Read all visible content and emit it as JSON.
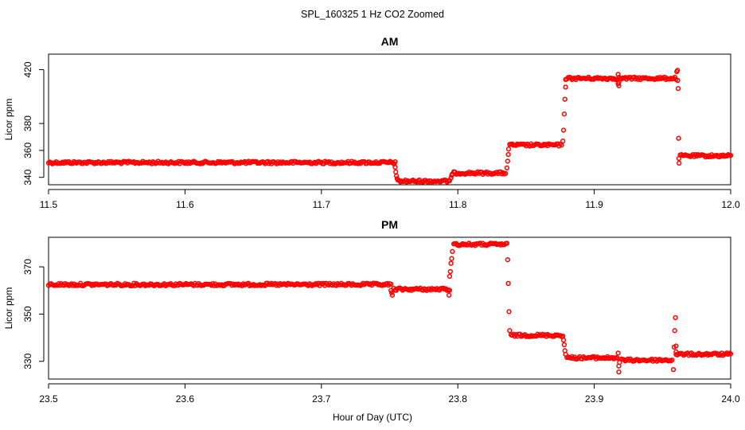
{
  "figure": {
    "title": "SPL_160325  1 Hz CO2 Zoomed",
    "xlabel": "Hour of Day (UTC)"
  },
  "chart_data": [
    {
      "type": "scatter",
      "title": "AM",
      "xlabel": "",
      "ylabel": "Licor ppm",
      "xlim": [
        11.5,
        12.0
      ],
      "ylim": [
        334.5,
        431.5
      ],
      "xticks": [
        11.5,
        11.6,
        11.7,
        11.8,
        11.9,
        12.0
      ],
      "xtick_labels": [
        "11.5",
        "11.6",
        "11.7",
        "11.8",
        "11.9",
        "12.0"
      ],
      "yticks": [
        340,
        360,
        380,
        420
      ],
      "ytick_labels": [
        "340",
        "360",
        "380",
        "420"
      ],
      "grid": false,
      "marker": "open-circle",
      "color": "#ff0000",
      "segments": [
        {
          "x_start": 11.5,
          "x_end": 11.754,
          "y": 351.0
        },
        {
          "x_start": 11.756,
          "x_end": 11.794,
          "y": 337.2
        },
        {
          "x_start": 11.797,
          "x_end": 11.835,
          "y": 343.2
        },
        {
          "x_start": 11.838,
          "x_end": 11.876,
          "y": 364.0
        },
        {
          "x_start": 11.879,
          "x_end": 11.96,
          "y": 413.5
        },
        {
          "x_start": 11.963,
          "x_end": 12.0,
          "y": 356.0
        }
      ],
      "transitions": [
        {
          "x": [
            11.7535,
            11.754,
            11.7545,
            11.755,
            11.7555
          ],
          "y": [
            350.0,
            347.5,
            344.0,
            341.0,
            339.0
          ]
        },
        {
          "x": [
            11.795,
            11.7955,
            11.796
          ],
          "y": [
            339.5,
            341.5,
            342.5
          ]
        },
        {
          "x": [
            11.836,
            11.8365,
            11.837,
            11.8372
          ],
          "y": [
            347.0,
            352.0,
            357.0,
            361.0
          ]
        },
        {
          "x": [
            11.877,
            11.8775,
            11.878,
            11.8785,
            11.879
          ],
          "y": [
            367.0,
            375.0,
            387.0,
            398.0,
            407.0
          ]
        },
        {
          "x": [
            11.9175,
            11.9175,
            11.918,
            11.918
          ],
          "y": [
            416.5,
            409.5,
            408.0,
            410.5
          ]
        },
        {
          "x": [
            11.9605,
            11.961,
            11.9612,
            11.9615,
            11.9618,
            11.962,
            11.9622
          ],
          "y": [
            418.5,
            419.5,
            412.0,
            406.0,
            369.0,
            354.0,
            350.5
          ]
        }
      ]
    },
    {
      "type": "scatter",
      "title": "PM",
      "xlabel": "",
      "ylabel": "Licor ppm",
      "xlim": [
        23.5,
        24.0
      ],
      "ylim": [
        322.5,
        382.5
      ],
      "xticks": [
        23.5,
        23.6,
        23.7,
        23.8,
        23.9,
        24.0
      ],
      "xtick_labels": [
        "23.5",
        "23.6",
        "23.7",
        "23.8",
        "23.9",
        "24.0"
      ],
      "yticks": [
        330,
        350,
        370
      ],
      "ytick_labels": [
        "330",
        "350",
        "370"
      ],
      "grid": false,
      "marker": "open-circle",
      "color": "#ff0000",
      "segments": [
        {
          "x_start": 23.5,
          "x_end": 23.751,
          "y": 362.5
        },
        {
          "x_start": 23.753,
          "x_end": 23.794,
          "y": 360.5
        },
        {
          "x_start": 23.797,
          "x_end": 23.836,
          "y": 379.5
        },
        {
          "x_start": 23.839,
          "x_end": 23.877,
          "y": 341.0
        },
        {
          "x_start": 23.88,
          "x_end": 23.917,
          "y": 331.5
        },
        {
          "x_start": 23.92,
          "x_end": 23.957,
          "y": 330.5
        },
        {
          "x_start": 23.96,
          "x_end": 24.0,
          "y": 333.0
        }
      ],
      "transitions": [
        {
          "x": [
            23.751,
            23.7515,
            23.752
          ],
          "y": [
            360.0,
            359.0,
            358.0
          ]
        },
        {
          "x": [
            23.7935,
            23.794,
            23.7945,
            23.795,
            23.7955,
            23.796
          ],
          "y": [
            358.0,
            366.0,
            368.0,
            371.5,
            373.5,
            376.5
          ]
        },
        {
          "x": [
            23.8365,
            23.837,
            23.8375,
            23.838
          ],
          "y": [
            373.0,
            363.0,
            351.0,
            343.0
          ]
        },
        {
          "x": [
            23.8775,
            23.878,
            23.8785,
            23.879
          ],
          "y": [
            339.0,
            337.0,
            334.5,
            333.0
          ]
        },
        {
          "x": [
            23.9175,
            23.918,
            23.918,
            23.9185
          ],
          "y": [
            333.5,
            328.0,
            325.5,
            329.5
          ]
        },
        {
          "x": [
            23.958,
            23.9585,
            23.959,
            23.9595,
            23.96,
            23.96
          ],
          "y": [
            326.5,
            336.0,
            343.0,
            348.5,
            336.5,
            334.0
          ]
        }
      ]
    }
  ]
}
